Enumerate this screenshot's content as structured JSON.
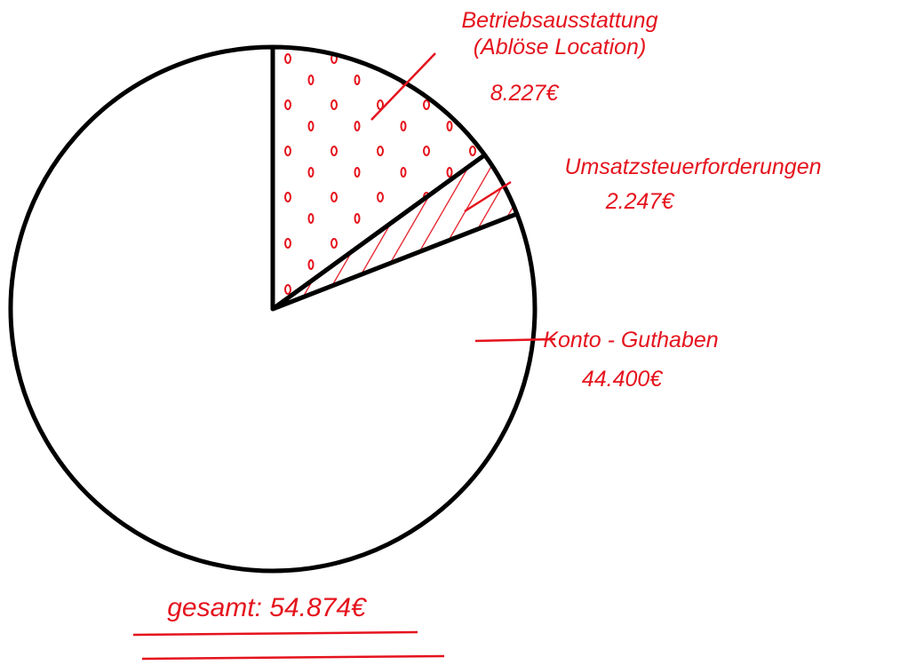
{
  "chart_data": {
    "type": "pie",
    "categories": [
      "Betriebsausstattung\n(Ablöse Location)",
      "Umsatzsteuerforderungen",
      "Konto - Guthaben"
    ],
    "values": [
      8227,
      2247,
      44400
    ],
    "value_labels": [
      "8.227€",
      "2.247€",
      "44.400€"
    ],
    "color": "#e5131d",
    "total_label": "gesamt: 54.874€"
  }
}
